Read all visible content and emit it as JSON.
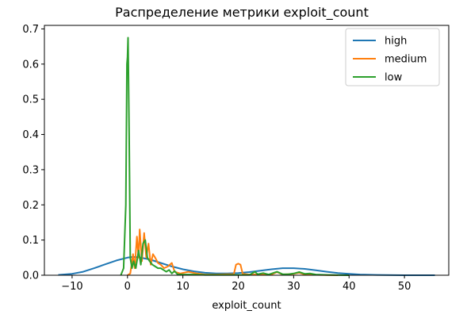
{
  "chart_data": {
    "type": "line",
    "title": "Распределение метрики exploit_count",
    "xlabel": "exploit_count",
    "ylabel": "",
    "xlim": [
      -15,
      58
    ],
    "ylim": [
      0,
      0.71
    ],
    "x_ticks": [
      -10,
      0,
      10,
      20,
      30,
      40,
      50
    ],
    "x_tick_labels": [
      "−10",
      "0",
      "10",
      "20",
      "30",
      "40",
      "50"
    ],
    "y_ticks": [
      0.0,
      0.1,
      0.2,
      0.3,
      0.4,
      0.5,
      0.6,
      0.7
    ],
    "y_tick_labels": [
      "0.0",
      "0.1",
      "0.2",
      "0.3",
      "0.4",
      "0.5",
      "0.6",
      "0.7"
    ],
    "grid": false,
    "legend_position": "top-right",
    "series": [
      {
        "name": "high",
        "color": "#1f77b4",
        "points": [
          [
            -12.5,
            0.001
          ],
          [
            -10,
            0.004
          ],
          [
            -8,
            0.01
          ],
          [
            -6,
            0.02
          ],
          [
            -4,
            0.031
          ],
          [
            -2,
            0.042
          ],
          [
            0,
            0.05
          ],
          [
            1,
            0.052
          ],
          [
            2,
            0.051
          ],
          [
            4,
            0.045
          ],
          [
            6,
            0.035
          ],
          [
            8,
            0.025
          ],
          [
            10,
            0.017
          ],
          [
            12,
            0.011
          ],
          [
            14,
            0.007
          ],
          [
            16,
            0.005
          ],
          [
            18,
            0.005
          ],
          [
            20,
            0.006
          ],
          [
            22,
            0.009
          ],
          [
            24,
            0.013
          ],
          [
            26,
            0.017
          ],
          [
            28,
            0.02
          ],
          [
            30,
            0.02
          ],
          [
            32,
            0.018
          ],
          [
            34,
            0.014
          ],
          [
            36,
            0.01
          ],
          [
            38,
            0.006
          ],
          [
            40,
            0.004
          ],
          [
            42,
            0.002
          ],
          [
            45,
            0.001
          ],
          [
            50,
            0.0
          ],
          [
            55.5,
            0.0
          ]
        ]
      },
      {
        "name": "medium",
        "color": "#ff7f0e",
        "points": [
          [
            0,
            0.0
          ],
          [
            0.5,
            0.005
          ],
          [
            1,
            0.06
          ],
          [
            1.3,
            0.02
          ],
          [
            1.7,
            0.11
          ],
          [
            2,
            0.05
          ],
          [
            2.2,
            0.13
          ],
          [
            2.6,
            0.04
          ],
          [
            3,
            0.12
          ],
          [
            3.4,
            0.05
          ],
          [
            3.8,
            0.09
          ],
          [
            4.2,
            0.03
          ],
          [
            4.6,
            0.06
          ],
          [
            5,
            0.05
          ],
          [
            5.5,
            0.035
          ],
          [
            6,
            0.03
          ],
          [
            6.6,
            0.02
          ],
          [
            7.3,
            0.025
          ],
          [
            8,
            0.035
          ],
          [
            8.5,
            0.01
          ],
          [
            9.5,
            0.005
          ],
          [
            11,
            0.01
          ],
          [
            12.5,
            0.005
          ],
          [
            14,
            0.002
          ],
          [
            16,
            0.002
          ],
          [
            18,
            0.003
          ],
          [
            19.2,
            0.003
          ],
          [
            19.6,
            0.03
          ],
          [
            20,
            0.033
          ],
          [
            20.4,
            0.03
          ],
          [
            20.8,
            0.004
          ],
          [
            22,
            0.002
          ],
          [
            24,
            0.002
          ],
          [
            26,
            0.002
          ],
          [
            27,
            0.009
          ],
          [
            28,
            0.002
          ],
          [
            30,
            0.004
          ],
          [
            31,
            0.007
          ],
          [
            32,
            0.002
          ],
          [
            35,
            0.001
          ],
          [
            38,
            0.0
          ]
        ]
      },
      {
        "name": "low",
        "color": "#2ca02c",
        "points": [
          [
            -1.2,
            0.0
          ],
          [
            -0.7,
            0.02
          ],
          [
            -0.3,
            0.2
          ],
          [
            -0.1,
            0.6
          ],
          [
            0,
            0.62
          ],
          [
            0.1,
            0.675
          ],
          [
            0.3,
            0.4
          ],
          [
            0.5,
            0.05
          ],
          [
            0.8,
            0.02
          ],
          [
            1.1,
            0.04
          ],
          [
            1.5,
            0.02
          ],
          [
            2,
            0.07
          ],
          [
            2.4,
            0.03
          ],
          [
            2.8,
            0.09
          ],
          [
            3.2,
            0.1
          ],
          [
            3.6,
            0.05
          ],
          [
            4,
            0.04
          ],
          [
            4.5,
            0.03
          ],
          [
            5,
            0.025
          ],
          [
            5.5,
            0.02
          ],
          [
            6,
            0.02
          ],
          [
            6.5,
            0.015
          ],
          [
            7,
            0.01
          ],
          [
            7.5,
            0.015
          ],
          [
            8,
            0.005
          ],
          [
            8.5,
            0.012
          ],
          [
            9,
            0.003
          ],
          [
            10,
            0.002
          ],
          [
            12,
            0.002
          ],
          [
            14,
            0.001
          ],
          [
            16,
            0.001
          ],
          [
            19,
            0.001
          ],
          [
            22,
            0.001
          ],
          [
            23,
            0.01
          ],
          [
            23.5,
            0.003
          ],
          [
            24.5,
            0.006
          ],
          [
            25.5,
            0.002
          ],
          [
            27,
            0.01
          ],
          [
            28,
            0.003
          ],
          [
            29,
            0.003
          ],
          [
            30,
            0.005
          ],
          [
            31,
            0.009
          ],
          [
            32,
            0.004
          ],
          [
            33,
            0.005
          ],
          [
            34,
            0.002
          ],
          [
            36,
            0.001
          ],
          [
            40,
            0.0
          ]
        ]
      }
    ]
  }
}
